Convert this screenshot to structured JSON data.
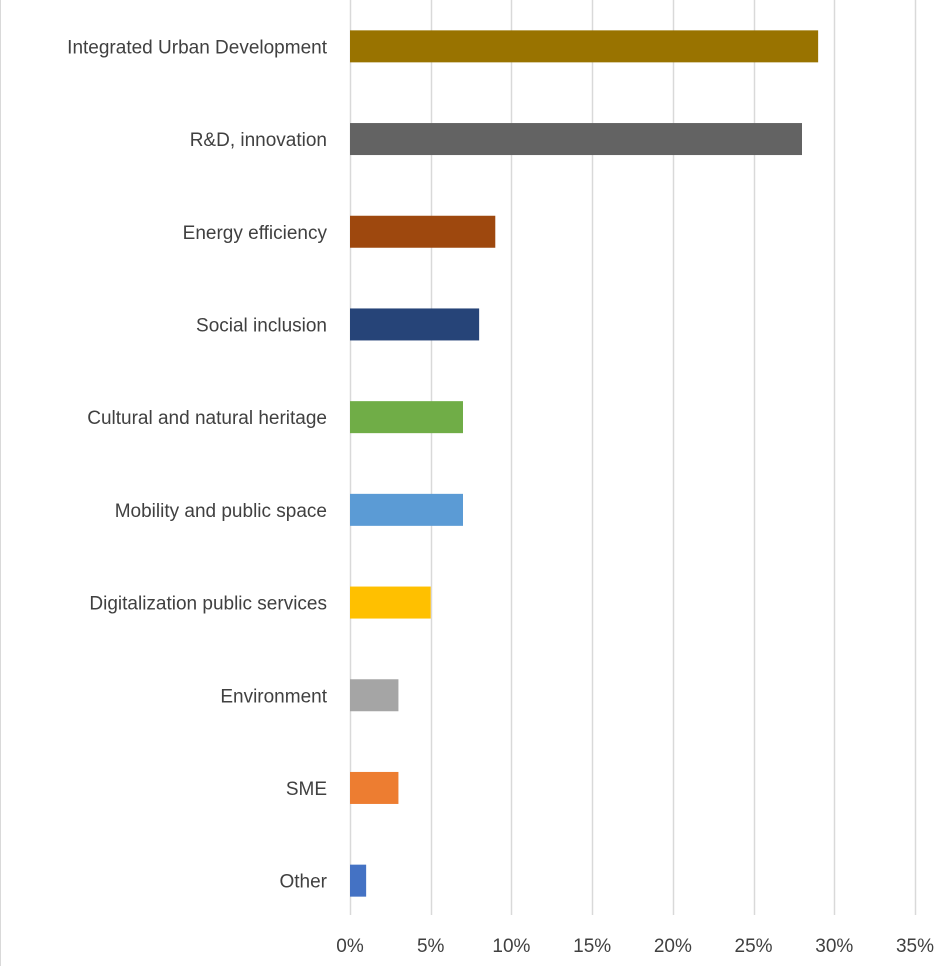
{
  "chart_data": {
    "type": "bar",
    "orientation": "horizontal",
    "categories": [
      "Integrated Urban Development",
      "R&D, innovation",
      "Energy efficiency",
      "Social inclusion",
      "Cultural and natural heritage",
      "Mobility and public space",
      "Digitalization public services",
      "Environment",
      "SME",
      "Other"
    ],
    "values": [
      29,
      28,
      9,
      8,
      7,
      7,
      5,
      3,
      3,
      1
    ],
    "colors": [
      "#997300",
      "#636363",
      "#9e480e",
      "#264478",
      "#70ad47",
      "#5b9bd5",
      "#ffc000",
      "#a5a5a5",
      "#ed7d31",
      "#4472c4"
    ],
    "xlim": [
      0,
      35
    ],
    "x_ticks": [
      0,
      5,
      10,
      15,
      20,
      25,
      30,
      35
    ],
    "x_tick_labels": [
      "0%",
      "5%",
      "10%",
      "15%",
      "20%",
      "25%",
      "30%",
      "35%"
    ],
    "value_unit": "%",
    "grid": true,
    "gridline_color": "#d9d9d9",
    "title": "",
    "xlabel": "",
    "ylabel": ""
  }
}
